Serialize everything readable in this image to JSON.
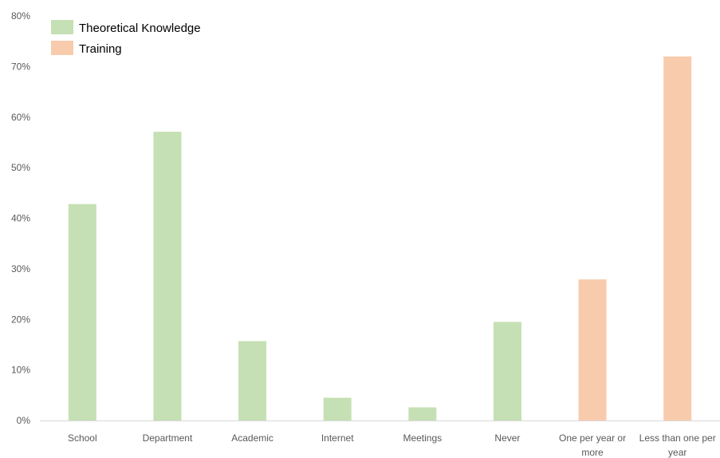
{
  "chart_data": {
    "type": "bar",
    "categories": [
      [
        "School"
      ],
      [
        "Department"
      ],
      [
        "Academic"
      ],
      [
        "Internet"
      ],
      [
        "Meetings"
      ],
      [
        "Never"
      ],
      [
        "One per year or",
        "more"
      ],
      [
        "Less than one per",
        "year"
      ]
    ],
    "series": [
      {
        "name": "Theoretical Knowledge",
        "color": "#c5e0b4",
        "values": [
          42.8,
          57.1,
          15.7,
          4.5,
          2.6,
          19.5,
          null,
          null
        ]
      },
      {
        "name": "Training",
        "color": "#f8cbad",
        "values": [
          null,
          null,
          null,
          null,
          null,
          null,
          27.9,
          72.0
        ]
      }
    ],
    "ylim": [
      0,
      80
    ],
    "yticks": [
      "0%",
      "10%",
      "20%",
      "30%",
      "40%",
      "50%",
      "60%",
      "70%",
      "80%"
    ],
    "ytick_values": [
      0,
      10,
      20,
      30,
      40,
      50,
      60,
      70,
      80
    ],
    "grid": false,
    "legend_position": "top-left",
    "axis_color": "#d9d9d9"
  }
}
